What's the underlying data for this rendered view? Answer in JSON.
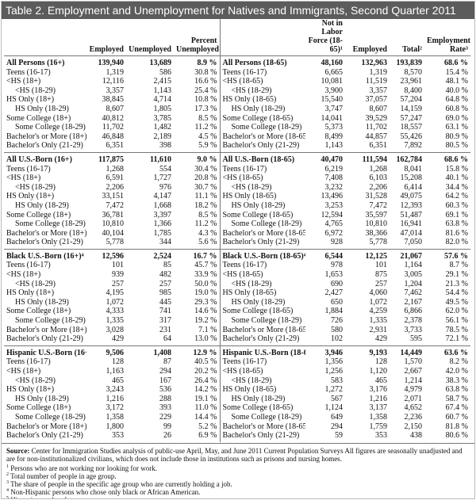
{
  "title": "Table 2. Employment and Unemployment for Natives and Immigrants, Second Quarter 2011",
  "left_header": [
    "Employed",
    "Unemployed",
    "Percent Unemployed"
  ],
  "right_header": [
    "Not in Labor Force (18-65)¹",
    "Employed",
    "Total²",
    "Employment Rate³"
  ],
  "sections": [
    {
      "left_rows": [
        [
          "All Persons (16+)",
          "139,940",
          "13,689",
          "8.9 %"
        ],
        [
          "Teens (16-17)",
          "1,319",
          "586",
          "30.8 %"
        ],
        [
          "<HS (18+)",
          "12,116",
          "2,415",
          "16.6 %"
        ],
        [
          "<HS (18-29)",
          "3,357",
          "1,143",
          "25.4 %"
        ],
        [
          "HS Only (18+)",
          "38,845",
          "4,714",
          "10.8 %"
        ],
        [
          "HS Only (18-29)",
          "8,607",
          "1,805",
          "17.3 %"
        ],
        [
          "Some College (18+)",
          "40,812",
          "3,785",
          "8.5 %"
        ],
        [
          "Some College (18-29)",
          "11,702",
          "1,482",
          "11.2 %"
        ],
        [
          "Bachelor's or More (18+)",
          "46,848",
          "2,189",
          "4.5 %"
        ],
        [
          "Bachelor's Only (21-29)",
          "6,351",
          "398",
          "5.9 %"
        ]
      ],
      "right_rows": [
        [
          "All Persons (18-65)",
          "48,160",
          "132,963",
          "193,839",
          "68.6 %"
        ],
        [
          "Teens (16-17)",
          "6,665",
          "1,319",
          "8,570",
          "15.4 %"
        ],
        [
          "<HS (18-65)",
          "10,081",
          "11,519",
          "23,961",
          "48.1 %"
        ],
        [
          "<HS (18-29)",
          "3,900",
          "3,357",
          "8,400",
          "40.0 %"
        ],
        [
          "HS Only (18-65)",
          "15,540",
          "37,057",
          "57,204",
          "64.8 %"
        ],
        [
          "HS Only (18-29)",
          "3,747",
          "8,607",
          "14,159",
          "60.8 %"
        ],
        [
          "Some College (18-65)",
          "14,041",
          "39,529",
          "57,247",
          "69.0 %"
        ],
        [
          "Some College (18-29)",
          "5,373",
          "11,702",
          "18,557",
          "63.1 %"
        ],
        [
          "Bachelor's or More (18-65)",
          "8,499",
          "44,857",
          "55,426",
          "80.9 %"
        ],
        [
          "Bachelor's Only (21-29)",
          "1,143",
          "6,351",
          "7,892",
          "80.5 %"
        ]
      ]
    },
    {
      "left_rows": [
        [
          "All U.S.-Born (16+)",
          "117,875",
          "11,610",
          "9.0 %"
        ],
        [
          "Teens (16-17)",
          "1,268",
          "554",
          "30.4 %"
        ],
        [
          "<HS (18+)",
          "6,591",
          "1,727",
          "20.8 %"
        ],
        [
          "<HS (18-29)",
          "2,206",
          "976",
          "30.7 %"
        ],
        [
          "HS Only (18+)",
          "33,151",
          "4,147",
          "11.1 %"
        ],
        [
          "HS Only (18-29)",
          "7,472",
          "1,668",
          "18.2 %"
        ],
        [
          "Some College (18+)",
          "36,781",
          "3,397",
          "8.5 %"
        ],
        [
          "Some College (18-29)",
          "10,810",
          "1,366",
          "11.2 %"
        ],
        [
          "Bachelor's or More (18+)",
          "40,104",
          "1,785",
          "4.3 %"
        ],
        [
          "Bachelor's Only (21-29)",
          "5,778",
          "344",
          "5.6 %"
        ]
      ],
      "right_rows": [
        [
          "All U.S.-Born (18-65)",
          "40,470",
          "111,594",
          "162,784",
          "68.6 %"
        ],
        [
          "Teens (16-17)",
          "6,219",
          "1,268",
          "8,041",
          "15.8 %"
        ],
        [
          "<HS (18-65)",
          "7,408",
          "6,103",
          "15,208",
          "40.1 %"
        ],
        [
          "<HS (18-29)",
          "3,232",
          "2,206",
          "6,414",
          "34.4 %"
        ],
        [
          "HS Only (18-65)",
          "13,496",
          "31,528",
          "49,075",
          "64.2 %"
        ],
        [
          "HS Only (18-29)",
          "3,253",
          "7,472",
          "12,393",
          "60.3 %"
        ],
        [
          "Some College (18-65)",
          "12,594",
          "35,597",
          "51,487",
          "69.1 %"
        ],
        [
          "Some College (18-29)",
          "4,765",
          "10,810",
          "16,941",
          "63.8 %"
        ],
        [
          "Bachelor's or More (18-65)",
          "6,972",
          "38,366",
          "47,014",
          "81.6 %"
        ],
        [
          "Bachelor's Only (21-29)",
          "928",
          "5,778",
          "7,050",
          "82.0 %"
        ]
      ]
    },
    {
      "left_rows": [
        [
          "Black U.S.-Born (16+)⁴",
          "12,596",
          "2,524",
          "16.7 %"
        ],
        [
          "Teens (16-17)",
          "101",
          "85",
          "45.7 %"
        ],
        [
          "<HS (18+)",
          "939",
          "482",
          "33.9 %"
        ],
        [
          "<HS (18-29)",
          "257",
          "257",
          "50.0 %"
        ],
        [
          "HS Only (18+)",
          "4,195",
          "985",
          "19.0 %"
        ],
        [
          "HS Only (18-29)",
          "1,072",
          "445",
          "29.3 %"
        ],
        [
          "Some College (18+)",
          "4,333",
          "741",
          "14.6 %"
        ],
        [
          "Some College (18-29)",
          "1,335",
          "317",
          "19.2 %"
        ],
        [
          "Bachelor's or More (18+)",
          "3,028",
          "231",
          "7.1 %"
        ],
        [
          "Bachelor's Only (21-29)",
          "429",
          "64",
          "13.0 %"
        ]
      ],
      "right_rows": [
        [
          "Black U.S.-Born (18-65)⁴",
          "6,544",
          "12,125",
          "21,067",
          "57.6 %"
        ],
        [
          "Teens (16-17)",
          "978",
          "101",
          "1,164",
          "8.7 %"
        ],
        [
          "<HS (18-65)",
          "1,653",
          "875",
          "3,005",
          "29.1 %"
        ],
        [
          "<HS (18-29)",
          "690",
          "257",
          "1,204",
          "21.3 %"
        ],
        [
          "HS Only (18-65)",
          "2,427",
          "4,060",
          "7,462",
          "54.4 %"
        ],
        [
          "HS Only (18-29)",
          "650",
          "1,072",
          "2,167",
          "49.5 %"
        ],
        [
          "Some College (18-65)",
          "1,884",
          "4,259",
          "6,866",
          "62.0 %"
        ],
        [
          "Some College (18-29)",
          "726",
          "1,335",
          "2,378",
          "56.1 %"
        ],
        [
          "Bachelor's or More (18-65)",
          "580",
          "2,931",
          "3,733",
          "78.5 %"
        ],
        [
          "Bachelor's Only (21-29)",
          "102",
          "429",
          "595",
          "72.1 %"
        ]
      ]
    },
    {
      "left_rows": [
        [
          "Hispanic U.S.-Born (16+)⁵",
          "9,506",
          "1,408",
          "12.9 %"
        ],
        [
          "Teens (16-17)",
          "128",
          "87",
          "40.5 %"
        ],
        [
          "<HS (18+)",
          "1,163",
          "294",
          "20.2 %"
        ],
        [
          "<HS (18-29)",
          "465",
          "167",
          "26.4 %"
        ],
        [
          "HS Only (18+)",
          "3,243",
          "536",
          "14.2 %"
        ],
        [
          "HS Only (18-29)",
          "1,216",
          "288",
          "19.1 %"
        ],
        [
          "Some College (18+)",
          "3,172",
          "393",
          "11.0 %"
        ],
        [
          "Some College (18-29)",
          "1,358",
          "229",
          "14.4 %"
        ],
        [
          "Bachelor's or More (18+)",
          "1,800",
          "99",
          "5.2 %"
        ],
        [
          "Bachelor's Only (21-29)",
          "353",
          "26",
          "6.9 %"
        ]
      ],
      "right_rows": [
        [
          "Hispanic U.S.-Born (18-65)⁵",
          "3,946",
          "9,193",
          "14,449",
          "63.6 %"
        ],
        [
          "Teens (16-17)",
          "1,356",
          "128",
          "1,570",
          "8.2 %"
        ],
        [
          "<HS (18-65)",
          "1,256",
          "1,120",
          "2,667",
          "42.0 %"
        ],
        [
          "<HS (18-29)",
          "583",
          "465",
          "1,214",
          "38.3 %"
        ],
        [
          "HS Only (18-65)",
          "1,272",
          "3,176",
          "4,979",
          "63.8 %"
        ],
        [
          "HS Only (18-29)",
          "567",
          "1,216",
          "2,071",
          "58.7 %"
        ],
        [
          "Some College (18-65)",
          "1,124",
          "3,137",
          "4,652",
          "67.4 %"
        ],
        [
          "Some College (18-29)",
          "649",
          "1,358",
          "2,236",
          "60.7 %"
        ],
        [
          "Bachelor's or More (18-65)",
          "294",
          "1,759",
          "2,150",
          "81.8 %"
        ],
        [
          "Bachelor's Only (21-29)",
          "59",
          "353",
          "438",
          "80.6 %"
        ]
      ]
    }
  ],
  "notes": {
    "source_label": "Source:",
    "source_text": "Center for Immigration Studies analysis of public-use April, May, and June 2011 Current Population Surveys All figures are seasonally unadjusted and are for non-institutionalized civilians, which does not include those in institutions such as prisons and nursing homes.",
    "footnotes": [
      {
        "mark": "1",
        "text": "Persons who are not working nor looking for work."
      },
      {
        "mark": "2",
        "text": "Total number of people in age group."
      },
      {
        "mark": "3",
        "text": "The share of people in the specific age group who are currently holding a job."
      },
      {
        "mark": "4",
        "text": "Non-Hispanic persons who chose only black or African American."
      },
      {
        "mark": "5",
        "text": "Hispanics can be of any race."
      }
    ]
  }
}
